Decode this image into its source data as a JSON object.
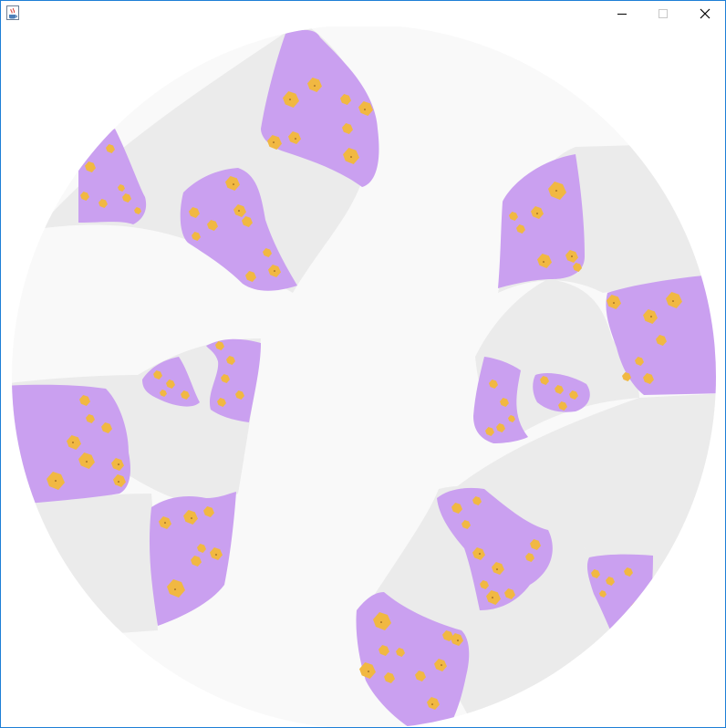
{
  "window": {
    "title": "",
    "app_icon": "java-coffee-cup-icon",
    "controls": {
      "minimize_icon": "minimize-icon",
      "maximize_icon": "maximize-icon",
      "close_icon": "close-icon"
    }
  },
  "colors": {
    "disk": "#f9f9f9",
    "band": "#ebebeb",
    "tile_fill": "#caa0f0",
    "spot_fill": "#f1b842",
    "spot_dot": "#7a4b18",
    "window_border": "#1e7fd6"
  }
}
